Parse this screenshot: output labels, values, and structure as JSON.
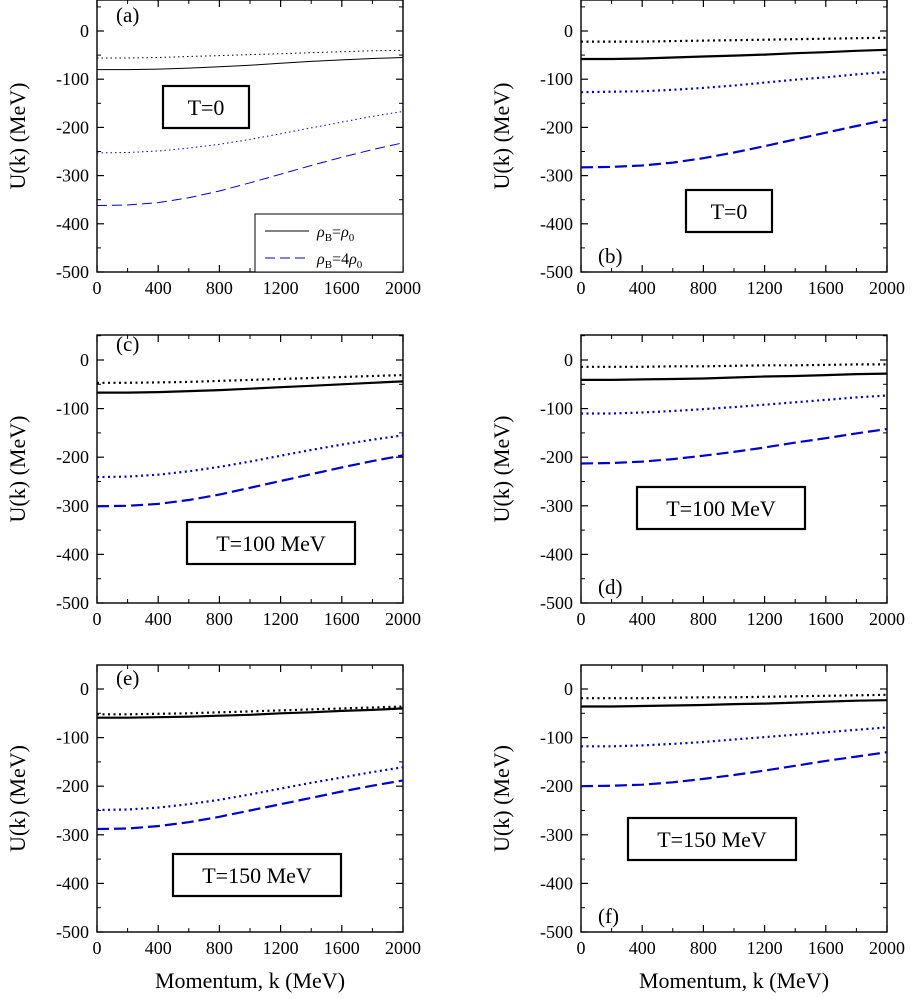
{
  "figure": {
    "xlabel": "Momentum, k (MeV)",
    "ylabel": "U(k) (MeV)"
  },
  "legend": {
    "entries": [
      {
        "rho": "ρ",
        "sub": "B",
        "eq": "=",
        "rhs": "ρ",
        "rhs_sub": "0",
        "rhs_prefix": "",
        "style": "solid",
        "color": "#000000"
      },
      {
        "rho": "ρ",
        "sub": "B",
        "eq": "=",
        "rhs": "ρ",
        "rhs_sub": "0",
        "rhs_prefix": "4",
        "style": "dashed",
        "color": "#0000cc"
      }
    ]
  },
  "colors": {
    "black": "#000000",
    "blue": "#0000cc"
  },
  "chart_data": [
    {
      "type": "line",
      "panel": "(a)",
      "temperature": "T=0",
      "xlim": [
        0,
        2000
      ],
      "ylim": [
        -500,
        50
      ],
      "xticks": [
        0,
        400,
        800,
        1200,
        1600,
        2000
      ],
      "yticks": [
        0,
        -100,
        -200,
        -300,
        -400,
        -500
      ],
      "x": [
        0,
        200,
        400,
        600,
        800,
        1000,
        1200,
        1400,
        1600,
        1800,
        2000
      ],
      "series": [
        {
          "style": "dotted",
          "color": "#000000",
          "values": [
            -56,
            -56,
            -55,
            -53,
            -51,
            -49,
            -47,
            -45,
            -43,
            -41,
            -40
          ]
        },
        {
          "style": "solid",
          "color": "#000000",
          "values": [
            -80,
            -80,
            -79,
            -77,
            -74,
            -71,
            -67,
            -63,
            -60,
            -57,
            -55
          ]
        },
        {
          "style": "dotted",
          "color": "#0000cc",
          "values": [
            -253,
            -252,
            -249,
            -243,
            -235,
            -225,
            -213,
            -201,
            -189,
            -177,
            -167
          ]
        },
        {
          "style": "dashed",
          "color": "#0000cc",
          "values": [
            -362,
            -361,
            -356,
            -346,
            -332,
            -315,
            -297,
            -279,
            -262,
            -246,
            -232
          ]
        }
      ]
    },
    {
      "type": "line",
      "panel": "(b)",
      "temperature": "T=0",
      "xlim": [
        0,
        2000
      ],
      "ylim": [
        -500,
        50
      ],
      "xticks": [
        0,
        400,
        800,
        1200,
        1600,
        2000
      ],
      "yticks": [
        0,
        -100,
        -200,
        -300,
        -400,
        -500
      ],
      "x": [
        0,
        200,
        400,
        600,
        800,
        1000,
        1200,
        1400,
        1600,
        1800,
        2000
      ],
      "series": [
        {
          "style": "dotted",
          "color": "#000000",
          "values": [
            -22,
            -22,
            -22,
            -21,
            -20,
            -19,
            -18,
            -17,
            -16,
            -15,
            -14
          ]
        },
        {
          "style": "solid",
          "color": "#000000",
          "values": [
            -58,
            -58,
            -57,
            -55,
            -53,
            -51,
            -49,
            -46,
            -44,
            -41,
            -39
          ]
        },
        {
          "style": "dotted",
          "color": "#0000cc",
          "values": [
            -127,
            -126,
            -125,
            -122,
            -118,
            -113,
            -107,
            -101,
            -96,
            -90,
            -85
          ]
        },
        {
          "style": "dashed",
          "color": "#0000cc",
          "values": [
            -283,
            -282,
            -279,
            -273,
            -264,
            -252,
            -239,
            -225,
            -211,
            -197,
            -184
          ]
        }
      ]
    },
    {
      "type": "line",
      "panel": "(c)",
      "temperature": "T=100 MeV",
      "xlim": [
        0,
        2000
      ],
      "ylim": [
        -500,
        50
      ],
      "xticks": [
        0,
        400,
        800,
        1200,
        1600,
        2000
      ],
      "yticks": [
        0,
        -100,
        -200,
        -300,
        -400,
        -500
      ],
      "x": [
        0,
        200,
        400,
        600,
        800,
        1000,
        1200,
        1400,
        1600,
        1800,
        2000
      ],
      "series": [
        {
          "style": "dotted",
          "color": "#000000",
          "values": [
            -47,
            -47,
            -46,
            -45,
            -43,
            -41,
            -39,
            -37,
            -35,
            -33,
            -31
          ]
        },
        {
          "style": "solid",
          "color": "#000000",
          "values": [
            -67,
            -67,
            -66,
            -64,
            -62,
            -59,
            -56,
            -53,
            -50,
            -47,
            -44
          ]
        },
        {
          "style": "dotted",
          "color": "#0000cc",
          "values": [
            -241,
            -240,
            -236,
            -229,
            -220,
            -209,
            -197,
            -185,
            -174,
            -164,
            -155
          ]
        },
        {
          "style": "dashed",
          "color": "#0000cc",
          "values": [
            -301,
            -300,
            -296,
            -288,
            -277,
            -263,
            -249,
            -235,
            -221,
            -208,
            -196
          ]
        }
      ]
    },
    {
      "type": "line",
      "panel": "(d)",
      "temperature": "T=100 MeV",
      "xlim": [
        0,
        2000
      ],
      "ylim": [
        -500,
        50
      ],
      "xticks": [
        0,
        400,
        800,
        1200,
        1600,
        2000
      ],
      "yticks": [
        0,
        -100,
        -200,
        -300,
        -400,
        -500
      ],
      "x": [
        0,
        200,
        400,
        600,
        800,
        1000,
        1200,
        1400,
        1600,
        1800,
        2000
      ],
      "series": [
        {
          "style": "dotted",
          "color": "#000000",
          "values": [
            -14,
            -14,
            -14,
            -13,
            -13,
            -12,
            -11,
            -11,
            -10,
            -9,
            -9
          ]
        },
        {
          "style": "solid",
          "color": "#000000",
          "values": [
            -41,
            -41,
            -40,
            -39,
            -38,
            -36,
            -34,
            -33,
            -31,
            -29,
            -28
          ]
        },
        {
          "style": "dotted",
          "color": "#0000cc",
          "values": [
            -110,
            -110,
            -108,
            -105,
            -101,
            -97,
            -92,
            -87,
            -82,
            -77,
            -73
          ]
        },
        {
          "style": "dashed",
          "color": "#0000cc",
          "values": [
            -213,
            -212,
            -209,
            -204,
            -197,
            -189,
            -180,
            -170,
            -161,
            -151,
            -142
          ]
        }
      ]
    },
    {
      "type": "line",
      "panel": "(e)",
      "temperature": "T=150 MeV",
      "xlim": [
        0,
        2000
      ],
      "ylim": [
        -500,
        50
      ],
      "xticks": [
        0,
        400,
        800,
        1200,
        1600,
        2000
      ],
      "yticks": [
        0,
        -100,
        -200,
        -300,
        -400,
        -500
      ],
      "x": [
        0,
        200,
        400,
        600,
        800,
        1000,
        1200,
        1400,
        1600,
        1800,
        2000
      ],
      "series": [
        {
          "style": "dotted",
          "color": "#000000",
          "values": [
            -52,
            -52,
            -51,
            -50,
            -48,
            -46,
            -44,
            -42,
            -40,
            -38,
            -36
          ]
        },
        {
          "style": "solid",
          "color": "#000000",
          "values": [
            -59,
            -59,
            -58,
            -57,
            -55,
            -53,
            -50,
            -48,
            -45,
            -43,
            -40
          ]
        },
        {
          "style": "dotted",
          "color": "#0000cc",
          "values": [
            -249,
            -248,
            -244,
            -237,
            -228,
            -217,
            -205,
            -193,
            -182,
            -171,
            -161
          ]
        },
        {
          "style": "dashed",
          "color": "#0000cc",
          "values": [
            -288,
            -287,
            -282,
            -274,
            -263,
            -250,
            -237,
            -224,
            -211,
            -199,
            -188
          ]
        }
      ]
    },
    {
      "type": "line",
      "panel": "(f)",
      "temperature": "T=150 MeV",
      "xlim": [
        0,
        2000
      ],
      "ylim": [
        -500,
        50
      ],
      "xticks": [
        0,
        400,
        800,
        1200,
        1600,
        2000
      ],
      "yticks": [
        0,
        -100,
        -200,
        -300,
        -400,
        -500
      ],
      "x": [
        0,
        200,
        400,
        600,
        800,
        1000,
        1200,
        1400,
        1600,
        1800,
        2000
      ],
      "series": [
        {
          "style": "dotted",
          "color": "#000000",
          "values": [
            -19,
            -19,
            -19,
            -18,
            -17,
            -17,
            -16,
            -15,
            -14,
            -13,
            -12
          ]
        },
        {
          "style": "solid",
          "color": "#000000",
          "values": [
            -36,
            -36,
            -35,
            -34,
            -33,
            -31,
            -30,
            -28,
            -26,
            -24,
            -23
          ]
        },
        {
          "style": "dotted",
          "color": "#0000cc",
          "values": [
            -118,
            -118,
            -116,
            -113,
            -109,
            -104,
            -99,
            -94,
            -89,
            -84,
            -79
          ]
        },
        {
          "style": "dashed",
          "color": "#0000cc",
          "values": [
            -200,
            -199,
            -197,
            -192,
            -185,
            -177,
            -168,
            -158,
            -148,
            -139,
            -130
          ]
        }
      ]
    }
  ]
}
